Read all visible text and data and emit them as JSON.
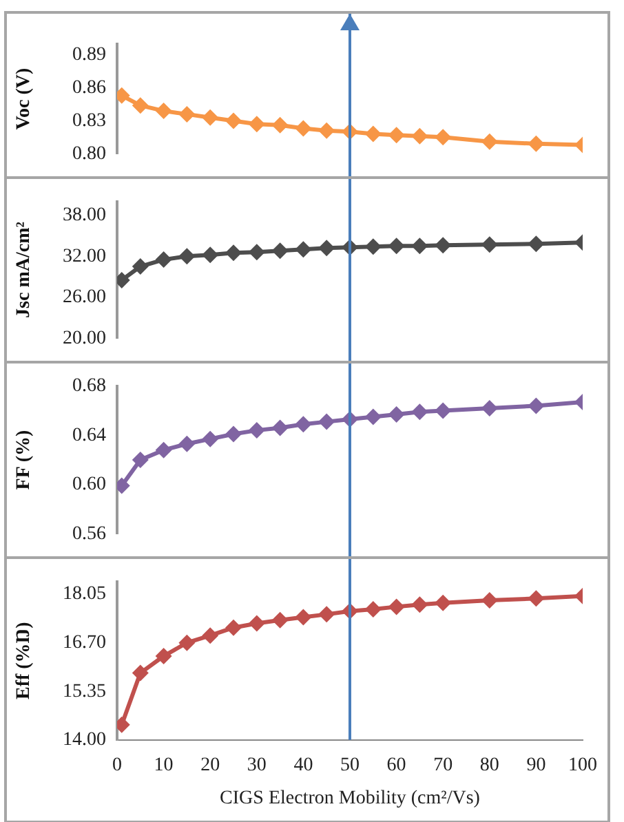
{
  "chart_data": [
    {
      "type": "line",
      "ylabel": "Voc (V)",
      "x": [
        1,
        5,
        10,
        15,
        20,
        25,
        30,
        35,
        40,
        45,
        50,
        55,
        60,
        65,
        70,
        80,
        90,
        100
      ],
      "xlim": [
        0,
        100
      ],
      "tick_labels": "y",
      "marker": "diamond",
      "grid": false,
      "series": [
        {
          "color": "#f79646",
          "values": [
            0.853,
            0.844,
            0.839,
            0.836,
            0.833,
            0.83,
            0.827,
            0.826,
            0.823,
            0.821,
            0.82,
            0.818,
            0.817,
            0.816,
            0.815,
            0.811,
            0.809,
            0.808
          ]
        }
      ],
      "ylim": [
        0.8,
        0.9
      ],
      "yticks": [
        {
          "value": 0.8,
          "label": "0.80"
        },
        0.83,
        0.86,
        0.89
      ],
      "ref_lines": [
        {
          "axis": "x",
          "value": 50,
          "color": "#4a7ebb"
        }
      ]
    },
    {
      "type": "line",
      "ylabel": "Jsc mA/cm²",
      "x": [
        1,
        5,
        10,
        15,
        20,
        25,
        30,
        35,
        40,
        45,
        50,
        55,
        60,
        65,
        70,
        80,
        90,
        100
      ],
      "xlim": [
        0,
        100
      ],
      "tick_labels": "y",
      "marker": "diamond",
      "grid": false,
      "series": [
        {
          "color": "#4d4d4d",
          "values": [
            28.5,
            30.5,
            31.5,
            32.0,
            32.2,
            32.5,
            32.6,
            32.8,
            33.0,
            33.2,
            33.3,
            33.4,
            33.5,
            33.5,
            33.6,
            33.7,
            33.8,
            34.0
          ]
        }
      ],
      "ylim": [
        20,
        40
      ],
      "yticks": [
        {
          "value": 20,
          "label": "20.00"
        },
        {
          "value": 26,
          "label": "26.00"
        },
        {
          "value": 32,
          "label": "32.00"
        },
        {
          "value": 38,
          "label": "38.00"
        }
      ],
      "ref_lines": [
        {
          "axis": "x",
          "value": 50,
          "color": "#4a7ebb"
        }
      ]
    },
    {
      "type": "line",
      "ylabel": "FF (%)",
      "x": [
        1,
        5,
        10,
        15,
        20,
        25,
        30,
        35,
        40,
        45,
        50,
        55,
        60,
        65,
        70,
        80,
        90,
        100
      ],
      "xlim": [
        0,
        100
      ],
      "tick_labels": "y",
      "marker": "diamond",
      "grid": false,
      "series": [
        {
          "color": "#8064a2",
          "values": [
            0.599,
            0.62,
            0.628,
            0.633,
            0.637,
            0.641,
            0.644,
            0.646,
            0.649,
            0.651,
            0.653,
            0.655,
            0.657,
            0.659,
            0.66,
            0.662,
            0.664,
            0.667
          ]
        }
      ],
      "ylim": [
        0.56,
        0.68
      ],
      "yticks": [
        0.56,
        {
          "value": 0.6,
          "label": "0.60"
        },
        0.64,
        0.68
      ],
      "ref_lines": [
        {
          "axis": "x",
          "value": 50,
          "color": "#4a7ebb"
        }
      ]
    },
    {
      "type": "line",
      "ylabel": "Eff (%Ŋ)",
      "xlabel": "CIGS Electron Mobility (cm²/Vs)",
      "x": [
        1,
        5,
        10,
        15,
        20,
        25,
        30,
        35,
        40,
        45,
        50,
        55,
        60,
        65,
        70,
        80,
        90,
        100
      ],
      "xlim": [
        0,
        100
      ],
      "xticks": [
        0,
        10,
        20,
        30,
        40,
        50,
        60,
        70,
        80,
        90,
        100
      ],
      "marker": "diamond",
      "grid": false,
      "series": [
        {
          "color": "#c0504d",
          "values": [
            14.42,
            15.86,
            16.33,
            16.7,
            16.9,
            17.12,
            17.24,
            17.33,
            17.41,
            17.49,
            17.58,
            17.63,
            17.7,
            17.76,
            17.81,
            17.88,
            17.93,
            18.0
          ]
        }
      ],
      "ylim": [
        14,
        18.4
      ],
      "yticks": [
        {
          "value": 14,
          "label": "14.00"
        },
        15.35,
        {
          "value": 16.7,
          "label": "16.70"
        },
        18.05
      ],
      "ref_lines": [
        {
          "axis": "x",
          "value": 50,
          "color": "#4a7ebb"
        }
      ]
    }
  ]
}
